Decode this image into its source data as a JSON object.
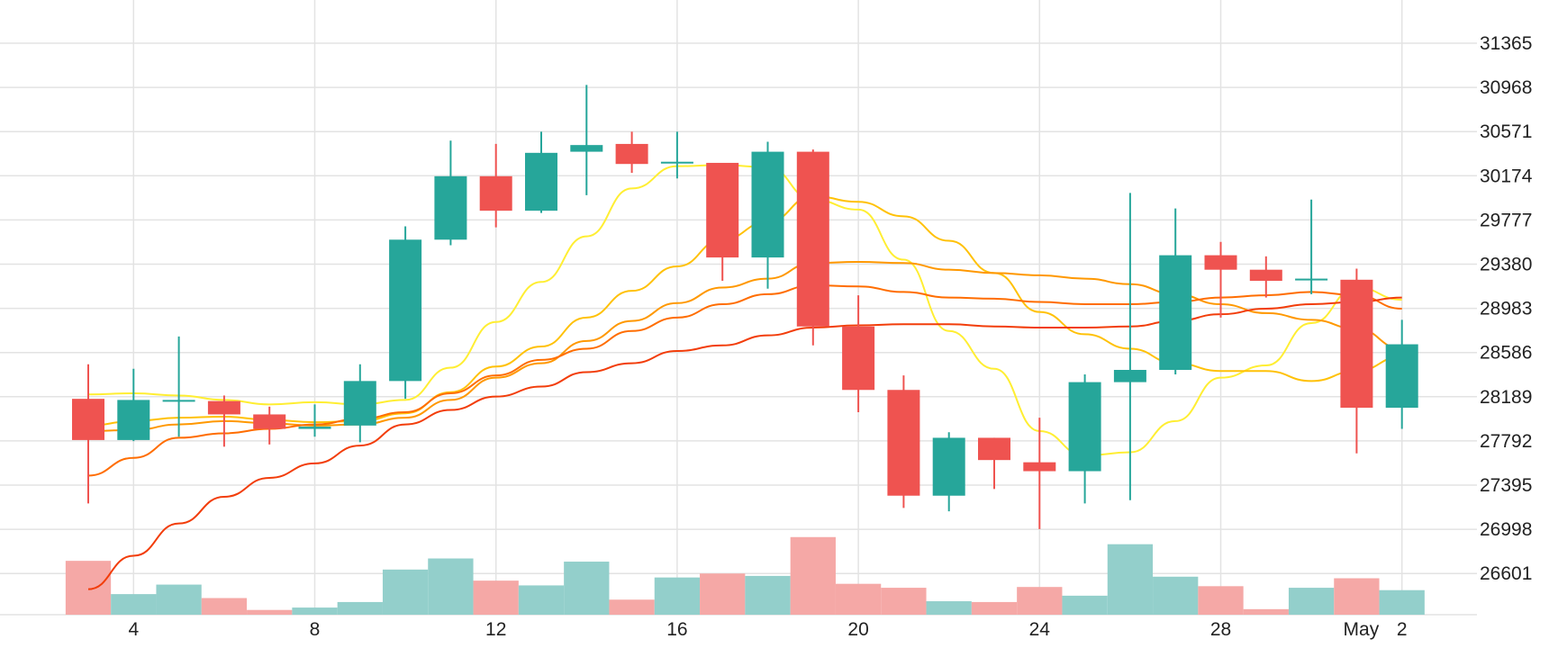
{
  "chart_data": {
    "type": "candlestick",
    "x_tick_labels": [
      "4",
      "8",
      "12",
      "16",
      "20",
      "24",
      "28",
      "May",
      "2"
    ],
    "y_tick_labels": [
      "26601",
      "26998",
      "27395",
      "27792",
      "28189",
      "28586",
      "28983",
      "29380",
      "29777",
      "30174",
      "30571",
      "30968",
      "31365"
    ],
    "ylim": [
      26200,
      31600
    ],
    "grid": true,
    "colors": {
      "up": "#26a69a",
      "down": "#ef5350",
      "volume_up": "#93cfcb",
      "volume_down": "#f5a8a6",
      "ma_lines": [
        "#ffee33",
        "#ffc107",
        "#ff9800",
        "#ff6d00",
        "#f23d0a"
      ]
    },
    "candles": [
      {
        "date": "Apr 3",
        "open": 28170,
        "high": 28480,
        "low": 27230,
        "close": 27800
      },
      {
        "date": "Apr 4",
        "open": 27800,
        "high": 28440,
        "low": 27790,
        "close": 28160
      },
      {
        "date": "Apr 5",
        "open": 28160,
        "high": 28730,
        "low": 27830,
        "close": 28160
      },
      {
        "date": "Apr 6",
        "open": 28150,
        "high": 28200,
        "low": 27740,
        "close": 28030
      },
      {
        "date": "Apr 7",
        "open": 28030,
        "high": 28100,
        "low": 27760,
        "close": 27900
      },
      {
        "date": "Apr 8",
        "open": 27900,
        "high": 28120,
        "low": 27830,
        "close": 27920
      },
      {
        "date": "Apr 9",
        "open": 27930,
        "high": 28480,
        "low": 27780,
        "close": 28330
      },
      {
        "date": "Apr 10",
        "open": 28330,
        "high": 29720,
        "low": 28170,
        "close": 29600
      },
      {
        "date": "Apr 11",
        "open": 29600,
        "high": 30490,
        "low": 29550,
        "close": 30170
      },
      {
        "date": "Apr 12",
        "open": 30170,
        "high": 30460,
        "low": 29710,
        "close": 29860
      },
      {
        "date": "Apr 13",
        "open": 29860,
        "high": 30570,
        "low": 29840,
        "close": 30380
      },
      {
        "date": "Apr 14",
        "open": 30390,
        "high": 30990,
        "low": 30000,
        "close": 30450
      },
      {
        "date": "Apr 15",
        "open": 30460,
        "high": 30570,
        "low": 30200,
        "close": 30280
      },
      {
        "date": "Apr 16",
        "open": 30290,
        "high": 30570,
        "low": 30150,
        "close": 30300
      },
      {
        "date": "Apr 17",
        "open": 30290,
        "high": 30290,
        "low": 29230,
        "close": 29440
      },
      {
        "date": "Apr 18",
        "open": 29440,
        "high": 30480,
        "low": 29160,
        "close": 30390
      },
      {
        "date": "Apr 19",
        "open": 30390,
        "high": 30410,
        "low": 28650,
        "close": 28820
      },
      {
        "date": "Apr 20",
        "open": 28820,
        "high": 29100,
        "low": 28050,
        "close": 28250
      },
      {
        "date": "Apr 21",
        "open": 28250,
        "high": 28380,
        "low": 27190,
        "close": 27300
      },
      {
        "date": "Apr 22",
        "open": 27300,
        "high": 27870,
        "low": 27160,
        "close": 27820
      },
      {
        "date": "Apr 23",
        "open": 27820,
        "high": 27820,
        "low": 27360,
        "close": 27620
      },
      {
        "date": "Apr 24",
        "open": 27600,
        "high": 28000,
        "low": 27000,
        "close": 27520
      },
      {
        "date": "Apr 25",
        "open": 27520,
        "high": 28390,
        "low": 27230,
        "close": 28320
      },
      {
        "date": "Apr 26",
        "open": 28320,
        "high": 30020,
        "low": 27260,
        "close": 28430
      },
      {
        "date": "Apr 27",
        "open": 28430,
        "high": 29880,
        "low": 28390,
        "close": 29460
      },
      {
        "date": "Apr 28",
        "open": 29460,
        "high": 29580,
        "low": 28900,
        "close": 29330
      },
      {
        "date": "Apr 29",
        "open": 29330,
        "high": 29450,
        "low": 29080,
        "close": 29230
      },
      {
        "date": "Apr 30",
        "open": 29240,
        "high": 29960,
        "low": 29110,
        "close": 29250
      },
      {
        "date": "May 1",
        "open": 29240,
        "high": 29340,
        "low": 27680,
        "close": 28090
      },
      {
        "date": "May 2",
        "open": 28090,
        "high": 28880,
        "low": 27900,
        "close": 28660
      }
    ],
    "volume": [
      0.68,
      0.26,
      0.38,
      0.21,
      0.06,
      0.09,
      0.16,
      0.57,
      0.71,
      0.43,
      0.37,
      0.67,
      0.19,
      0.47,
      0.52,
      0.49,
      0.98,
      0.39,
      0.34,
      0.17,
      0.16,
      0.35,
      0.24,
      0.89,
      0.48,
      0.36,
      0.07,
      0.34,
      0.46,
      0.31
    ],
    "ma_lines": [
      {
        "values": [
          28210,
          28220,
          28200,
          28160,
          28120,
          28140,
          28120,
          28160,
          28450,
          28860,
          29220,
          29630,
          30060,
          30260,
          30270,
          30250,
          29960,
          29870,
          29420,
          28780,
          28440,
          27880,
          27660,
          27690,
          27970,
          28360,
          28470,
          28850,
          29170,
          29060
        ]
      },
      {
        "values": [
          27930,
          27970,
          28000,
          28010,
          27980,
          27960,
          27970,
          28040,
          28230,
          28460,
          28640,
          28900,
          29140,
          29360,
          29600,
          29760,
          29990,
          29940,
          29810,
          29590,
          29300,
          28950,
          28750,
          28620,
          28490,
          28420,
          28420,
          28330,
          28420,
          28550
        ]
      },
      {
        "values": [
          27880,
          27890,
          27940,
          27970,
          27950,
          27930,
          27940,
          28000,
          28160,
          28360,
          28490,
          28690,
          28870,
          29030,
          29170,
          29250,
          29390,
          29400,
          29390,
          29330,
          29300,
          29280,
          29250,
          29200,
          29110,
          29020,
          28940,
          28880,
          28800,
          28620
        ]
      },
      {
        "values": [
          27480,
          27640,
          27820,
          27860,
          27900,
          27940,
          27990,
          28050,
          28220,
          28380,
          28520,
          28620,
          28780,
          28900,
          29020,
          29110,
          29190,
          29180,
          29130,
          29080,
          29070,
          29040,
          29020,
          29020,
          29040,
          29080,
          29100,
          29130,
          29100,
          28980
        ]
      },
      {
        "values": [
          26460,
          26760,
          27050,
          27290,
          27460,
          27590,
          27750,
          27940,
          28070,
          28190,
          28280,
          28410,
          28490,
          28600,
          28650,
          28740,
          28810,
          28830,
          28840,
          28840,
          28820,
          28810,
          28810,
          28820,
          28870,
          28930,
          28980,
          29020,
          29040,
          29080
        ]
      }
    ]
  }
}
